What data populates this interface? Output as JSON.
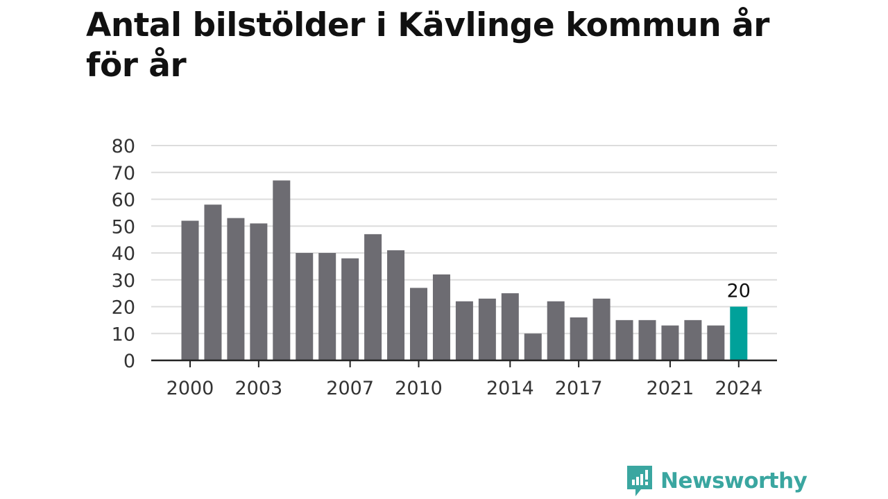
{
  "header": {
    "title": "Antal bilstölder i Kävlinge kommun år för år"
  },
  "brand": {
    "name": "Newsworthy"
  },
  "colors": {
    "bar": "#6d6c72",
    "highlight": "#00a19a",
    "grid": "#dcdcdc",
    "axis": "#222222",
    "brand": "#3aa6a0"
  },
  "chart_data": {
    "type": "bar",
    "title": "Antal bilstölder i Kävlinge kommun år för år",
    "xlabel": "",
    "ylabel": "",
    "categories": [
      "2000",
      "2001",
      "2002",
      "2003",
      "2004",
      "2005",
      "2006",
      "2007",
      "2008",
      "2009",
      "2010",
      "2011",
      "2012",
      "2013",
      "2014",
      "2015",
      "2016",
      "2017",
      "2018",
      "2019",
      "2020",
      "2021",
      "2022",
      "2023",
      "2024"
    ],
    "values": [
      52,
      58,
      53,
      51,
      67,
      40,
      40,
      38,
      47,
      41,
      27,
      32,
      22,
      23,
      25,
      10,
      22,
      16,
      23,
      15,
      15,
      13,
      15,
      13,
      20
    ],
    "x_tick_labels": [
      "2000",
      "2003",
      "2007",
      "2010",
      "2014",
      "2017",
      "2021",
      "2024"
    ],
    "y_ticks": [
      0,
      10,
      20,
      30,
      40,
      50,
      60,
      70,
      80
    ],
    "ylim": [
      0,
      80
    ],
    "grid": true,
    "highlight": {
      "category": "2024",
      "label": "20"
    }
  }
}
